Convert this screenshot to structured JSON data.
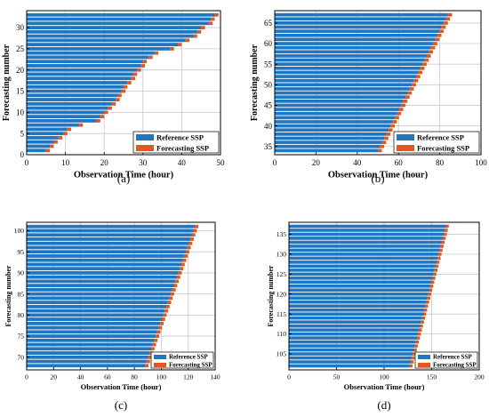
{
  "colors": {
    "reference": "#1f77c4",
    "forecasting": "#e2581c",
    "grid": "#c8c8c8",
    "axis": "#000000"
  },
  "chart_data": [
    {
      "type": "bar",
      "orientation": "horizontal",
      "panel_label": "(a)",
      "xlabel": "Observation Time (hour)",
      "ylabel": "Forecasting number",
      "xlim": [
        0,
        50
      ],
      "ylim": [
        0,
        34
      ],
      "xticks": [
        0,
        10,
        20,
        30,
        40,
        50
      ],
      "yticks": [
        0,
        5,
        10,
        15,
        20,
        25,
        30
      ],
      "grid": true,
      "legend_position": "bottom-right",
      "series": [
        {
          "name": "Reference SSP",
          "ref_start": 1,
          "ref_end": 33,
          "ref_values": [
            5,
            6,
            7,
            8.2,
            9.5,
            10.5,
            13.5,
            18,
            19,
            20,
            21,
            22,
            23,
            23.5,
            24.5,
            25,
            26,
            27,
            27.5,
            28.5,
            29.5,
            30,
            31.5,
            33,
            37,
            39,
            41,
            43,
            44,
            45,
            47,
            47.5,
            48.5
          ]
        },
        {
          "name": "Forecasting SSP",
          "step": 1
        }
      ]
    },
    {
      "type": "bar",
      "orientation": "horizontal",
      "panel_label": "(b)",
      "xlabel": "Observation Time (hour)",
      "ylabel": "Forecasting number",
      "xlim": [
        0,
        100
      ],
      "ylim": [
        33,
        68
      ],
      "xticks": [
        0,
        20,
        40,
        60,
        80,
        100
      ],
      "yticks": [
        35,
        40,
        45,
        50,
        55,
        60,
        65
      ],
      "grid": true,
      "legend_position": "bottom-right",
      "series": [
        {
          "name": "Reference SSP",
          "ref_start": 34,
          "ref_end": 67,
          "ref_first": 50,
          "ref_last": 84
        },
        {
          "name": "Forecasting SSP",
          "step": 2
        }
      ]
    },
    {
      "type": "bar",
      "orientation": "horizontal",
      "panel_label": "(c)",
      "xlabel": "Observation Time (hour)",
      "ylabel": "Forecasting number",
      "xlim": [
        0,
        140
      ],
      "ylim": [
        67,
        102
      ],
      "xticks": [
        0,
        20,
        40,
        60,
        80,
        100,
        120,
        140
      ],
      "yticks": [
        70,
        75,
        80,
        85,
        90,
        95,
        100
      ],
      "grid": true,
      "legend_position": "bottom-right",
      "series": [
        {
          "name": "Reference SSP",
          "ref_start": 68,
          "ref_end": 101,
          "ref_first": 88,
          "ref_last": 125
        },
        {
          "name": "Forecasting SSP",
          "step": 2.5
        }
      ]
    },
    {
      "type": "bar",
      "orientation": "horizontal",
      "panel_label": "(d)",
      "xlabel": "Observation Time (hour)",
      "ylabel": "Forecasting number",
      "xlim": [
        0,
        200
      ],
      "ylim": [
        101,
        138
      ],
      "xticks": [
        0,
        50,
        100,
        150,
        200
      ],
      "yticks": [
        105,
        110,
        115,
        120,
        125,
        130,
        135
      ],
      "grid": true,
      "legend_position": "bottom-right",
      "series": [
        {
          "name": "Reference SSP",
          "ref_start": 102,
          "ref_end": 137,
          "ref_first": 127,
          "ref_last": 165
        },
        {
          "name": "Forecasting SSP",
          "step": 3
        }
      ]
    }
  ]
}
